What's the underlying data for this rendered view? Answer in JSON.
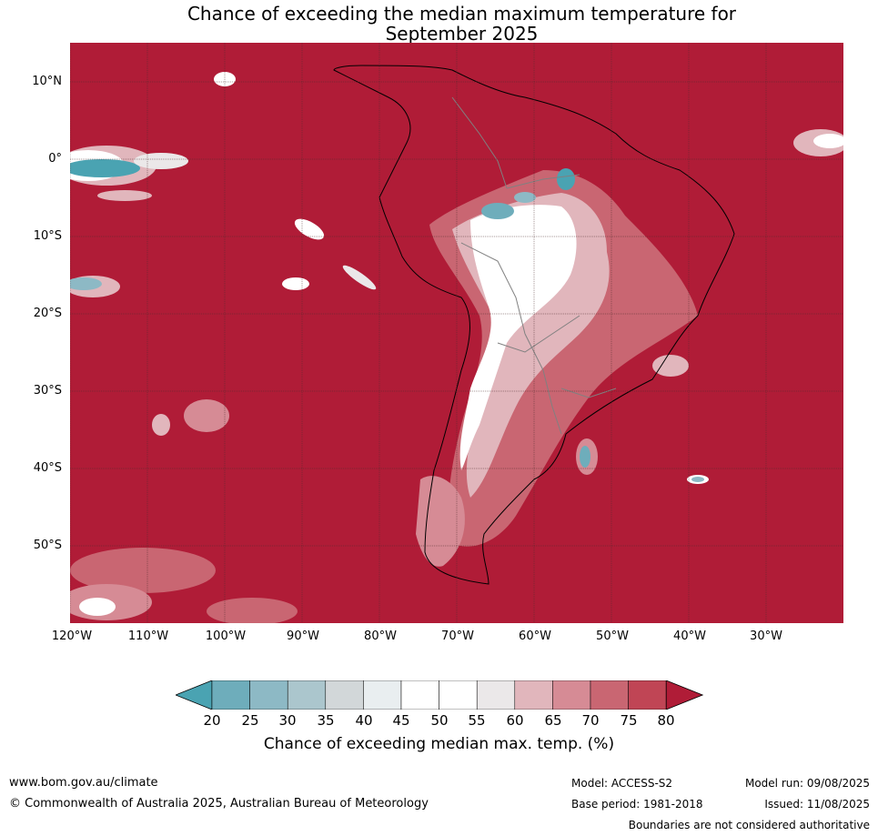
{
  "title": {
    "line1": "Chance of exceeding the median maximum temperature for",
    "line2": "September 2025"
  },
  "map": {
    "lat_labels": [
      "10°N",
      "0°",
      "10°S",
      "20°S",
      "30°S",
      "40°S",
      "50°S"
    ],
    "lon_labels": [
      "120°W",
      "110°W",
      "100°W",
      "90°W",
      "80°W",
      "70°W",
      "60°W",
      "50°W",
      "40°W",
      "30°W"
    ],
    "background_color": "#b01c37"
  },
  "colorbar": {
    "ticks": [
      "20",
      "25",
      "30",
      "35",
      "40",
      "45",
      "50",
      "55",
      "60",
      "65",
      "70",
      "75",
      "80"
    ],
    "colors": [
      "#4aa3b2",
      "#6eadbb",
      "#8db9c5",
      "#abc6cd",
      "#d2d7d9",
      "#e9eef0",
      "#ffffff",
      "#ffffff",
      "#ebe8e9",
      "#e1b6bc",
      "#d68b95",
      "#c96672",
      "#c04555",
      "#b01c37"
    ],
    "label": "Chance of exceeding median max. temp. (%)"
  },
  "footer": {
    "website": "www.bom.gov.au/climate",
    "copyright": "© Commonwealth of Australia 2025, Australian Bureau of Meteorology",
    "model": "Model: ACCESS-S2",
    "base_period": "Base period: 1981-2018",
    "model_run": "Model run: 09/08/2025",
    "issued": "Issued: 11/08/2025",
    "disclaimer": "Boundaries are not considered authoritative"
  }
}
